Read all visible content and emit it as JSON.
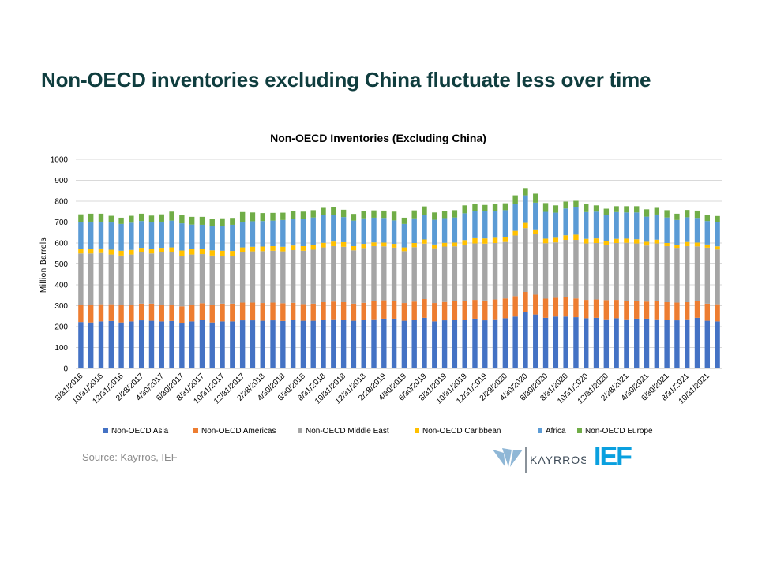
{
  "slide_title": "Non-OECD inventories excluding China fluctuate less over time",
  "source": "Source: Kayrros, IEF",
  "logos": {
    "kayrros": "KAYRROS",
    "ief": "IEF"
  },
  "chart_data": {
    "type": "bar",
    "stacked": true,
    "title": "Non-OECD Inventories (Excluding China)",
    "xlabel": "",
    "ylabel": "Million Barrels",
    "ylim": [
      0,
      1000
    ],
    "yticks": [
      0,
      100,
      200,
      300,
      400,
      500,
      600,
      700,
      800,
      900,
      1000
    ],
    "grid": "horizontal",
    "legend_position": "bottom",
    "categories": [
      "8/31/2016",
      "9/30/2016",
      "10/31/2016",
      "11/30/2016",
      "12/31/2016",
      "1/31/2017",
      "2/28/2017",
      "3/31/2017",
      "4/30/2017",
      "5/31/2017",
      "6/30/2017",
      "7/31/2017",
      "8/31/2017",
      "9/30/2017",
      "10/31/2017",
      "11/30/2017",
      "12/31/2017",
      "1/31/2018",
      "2/28/2018",
      "3/31/2018",
      "4/30/2018",
      "5/31/2018",
      "6/30/2018",
      "7/31/2018",
      "8/31/2018",
      "9/30/2018",
      "10/31/2018",
      "11/30/2018",
      "12/31/2018",
      "1/31/2019",
      "2/28/2019",
      "3/31/2019",
      "4/30/2019",
      "5/31/2019",
      "6/30/2019",
      "7/31/2019",
      "8/31/2019",
      "9/30/2019",
      "10/31/2019",
      "11/30/2019",
      "12/31/2019",
      "1/31/2020",
      "2/29/2020",
      "3/31/2020",
      "4/30/2020",
      "5/31/2020",
      "6/30/2020",
      "7/31/2020",
      "8/31/2020",
      "9/30/2020",
      "10/31/2020",
      "11/30/2020",
      "12/31/2020",
      "1/31/2021",
      "2/28/2021",
      "3/31/2021",
      "4/30/2021",
      "5/31/2021",
      "6/30/2021",
      "7/31/2021",
      "8/31/2021",
      "9/30/2021",
      "10/31/2021",
      "11/30/2021"
    ],
    "tick_labels": [
      "8/31/2016",
      "10/31/2016",
      "12/31/2016",
      "2/28/2017",
      "4/30/2017",
      "6/30/2017",
      "8/31/2017",
      "10/31/2017",
      "12/31/2017",
      "2/28/2018",
      "4/30/2018",
      "6/30/2018",
      "8/31/2018",
      "10/31/2018",
      "12/31/2018",
      "2/28/2019",
      "4/30/2019",
      "6/30/2019",
      "8/31/2019",
      "10/31/2019",
      "12/31/2019",
      "2/29/2020",
      "4/30/2020",
      "6/30/2020",
      "8/31/2020",
      "10/31/2020",
      "12/31/2020",
      "2/28/2021",
      "4/30/2021",
      "6/30/2021",
      "8/31/2021",
      "10/31/2021"
    ],
    "series": [
      {
        "name": "Non-OECD Asia",
        "color": "#4472C4",
        "values": [
          222,
          220,
          225,
          227,
          220,
          225,
          230,
          228,
          225,
          227,
          215,
          225,
          232,
          220,
          225,
          225,
          230,
          230,
          228,
          230,
          227,
          232,
          228,
          228,
          232,
          235,
          232,
          228,
          232,
          235,
          238,
          238,
          228,
          232,
          242,
          225,
          230,
          232,
          232,
          238,
          230,
          235,
          240,
          248,
          268,
          258,
          242,
          248,
          248,
          245,
          240,
          242,
          235,
          240,
          235,
          238,
          238,
          235,
          232,
          230,
          235,
          242,
          228,
          225
        ]
      },
      {
        "name": "Non-OECD Americas",
        "color": "#ED7D31",
        "values": [
          80,
          85,
          82,
          80,
          82,
          80,
          80,
          82,
          80,
          78,
          82,
          80,
          80,
          82,
          85,
          85,
          85,
          85,
          85,
          85,
          85,
          82,
          80,
          82,
          85,
          85,
          85,
          82,
          82,
          88,
          88,
          85,
          85,
          88,
          90,
          88,
          88,
          90,
          92,
          90,
          95,
          95,
          95,
          98,
          98,
          95,
          92,
          90,
          92,
          90,
          88,
          88,
          92,
          88,
          88,
          85,
          82,
          88,
          85,
          85,
          82,
          80,
          82,
          82
        ]
      },
      {
        "name": "Non-OECD Middle East",
        "color": "#A5A5A5",
        "values": [
          248,
          245,
          245,
          238,
          238,
          240,
          245,
          240,
          250,
          252,
          242,
          240,
          235,
          238,
          228,
          228,
          242,
          245,
          248,
          248,
          248,
          252,
          255,
          258,
          262,
          265,
          265,
          255,
          262,
          262,
          258,
          255,
          248,
          260,
          265,
          262,
          265,
          262,
          268,
          270,
          272,
          270,
          270,
          290,
          305,
          290,
          265,
          265,
          275,
          280,
          270,
          270,
          262,
          272,
          278,
          275,
          268,
          275,
          268,
          262,
          268,
          262,
          268,
          262
        ]
      },
      {
        "name": "Non-OECD Caribbean",
        "color": "#FFC000",
        "values": [
          22,
          22,
          22,
          23,
          23,
          22,
          22,
          23,
          22,
          22,
          25,
          25,
          25,
          25,
          25,
          24,
          22,
          22,
          22,
          22,
          22,
          22,
          22,
          22,
          22,
          22,
          22,
          20,
          20,
          18,
          18,
          18,
          18,
          20,
          20,
          18,
          18,
          18,
          22,
          25,
          25,
          25,
          22,
          22,
          25,
          22,
          22,
          22,
          22,
          25,
          22,
          22,
          20,
          20,
          20,
          20,
          18,
          18,
          15,
          15,
          20,
          18,
          15,
          15
        ]
      },
      {
        "name": "Africa",
        "color": "#5B9BD5",
        "values": [
          128,
          130,
          128,
          130,
          128,
          130,
          128,
          128,
          125,
          128,
          130,
          118,
          115,
          118,
          120,
          125,
          122,
          122,
          122,
          122,
          128,
          128,
          130,
          132,
          132,
          128,
          120,
          122,
          122,
          118,
          118,
          112,
          112,
          118,
          118,
          118,
          118,
          120,
          128,
          130,
          132,
          128,
          130,
          130,
          132,
          128,
          128,
          120,
          128,
          130,
          128,
          128,
          125,
          128,
          125,
          128,
          120,
          120,
          122,
          118,
          118,
          118,
          112,
          115
        ]
      },
      {
        "name": "Non-OECD Europe",
        "color": "#70AD47",
        "values": [
          37,
          38,
          38,
          32,
          30,
          33,
          35,
          30,
          35,
          43,
          38,
          37,
          38,
          32,
          35,
          33,
          47,
          42,
          38,
          37,
          35,
          37,
          35,
          35,
          35,
          37,
          35,
          32,
          35,
          35,
          35,
          42,
          30,
          38,
          40,
          35,
          35,
          35,
          38,
          35,
          28,
          35,
          33,
          40,
          35,
          43,
          42,
          35,
          33,
          32,
          37,
          30,
          30,
          28,
          30,
          30,
          35,
          32,
          35,
          30,
          35,
          35,
          28,
          30
        ]
      }
    ]
  }
}
